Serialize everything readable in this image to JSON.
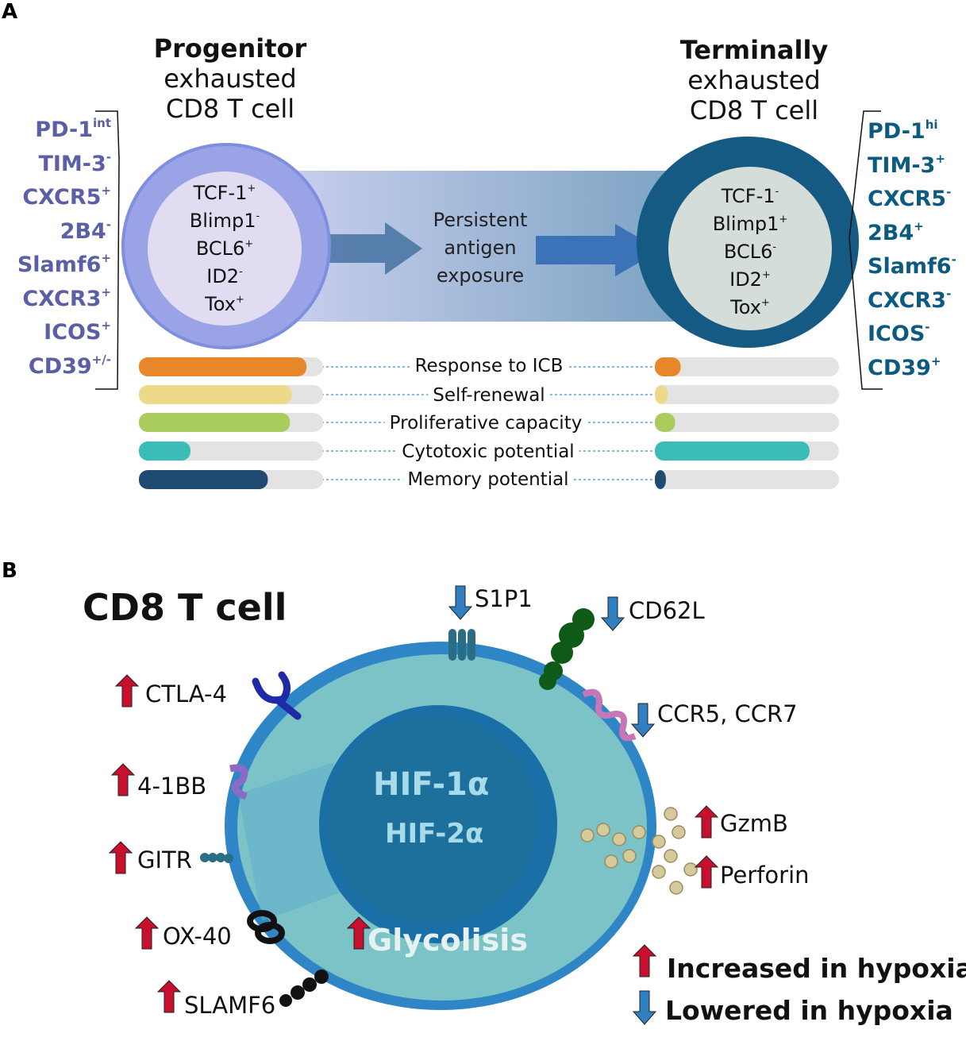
{
  "panel_a": {
    "letter": "A",
    "left_title": {
      "bold": "Progenitor",
      "line2": "exhausted",
      "line3": "CD8 T cell"
    },
    "right_title": {
      "bold": "Terminally",
      "line2": "exhausted",
      "line3": "CD8 T cell"
    },
    "left_markers": [
      {
        "name": "PD-1",
        "sup": "int"
      },
      {
        "name": "TIM-3",
        "sup": "-"
      },
      {
        "name": "CXCR5",
        "sup": "+"
      },
      {
        "name": "2B4",
        "sup": "-"
      },
      {
        "name": "Slamf6",
        "sup": "+"
      },
      {
        "name": "CXCR3",
        "sup": "+"
      },
      {
        "name": "ICOS",
        "sup": "+"
      },
      {
        "name": "CD39",
        "sup": "+/-"
      }
    ],
    "right_markers": [
      {
        "name": "PD-1",
        "sup": "hi"
      },
      {
        "name": "TIM-3",
        "sup": "+"
      },
      {
        "name": "CXCR5",
        "sup": "-"
      },
      {
        "name": "2B4",
        "sup": "+"
      },
      {
        "name": "Slamf6",
        "sup": "-"
      },
      {
        "name": "CXCR3",
        "sup": "-"
      },
      {
        "name": "ICOS",
        "sup": "-"
      },
      {
        "name": "CD39",
        "sup": "+"
      }
    ],
    "left_inner": [
      {
        "name": "TCF-1",
        "sup": "+"
      },
      {
        "name": "Blimp1",
        "sup": "-"
      },
      {
        "name": "BCL6",
        "sup": "+"
      },
      {
        "name": "ID2",
        "sup": "-"
      },
      {
        "name": "Tox",
        "sup": "+"
      }
    ],
    "right_inner": [
      {
        "name": "TCF-1",
        "sup": "-"
      },
      {
        "name": "Blimp1",
        "sup": "+"
      },
      {
        "name": "BCL6",
        "sup": "-"
      },
      {
        "name": "ID2",
        "sup": "+"
      },
      {
        "name": "Tox",
        "sup": "+"
      }
    ],
    "transition": {
      "line1": "Persistent",
      "line2": "antigen",
      "line3": "exposure"
    },
    "bars": [
      {
        "label": "Response to ICB",
        "color": "#e8862a",
        "progenitor": 0.91,
        "terminal": 0.14
      },
      {
        "label": "Self-renewal",
        "color": "#ecd98a",
        "progenitor": 0.83,
        "terminal": 0.07
      },
      {
        "label": "Proliferative capacity",
        "color": "#a9cc5c",
        "progenitor": 0.82,
        "terminal": 0.11
      },
      {
        "label": "Cytotoxic potential",
        "color": "#3bbcb8",
        "progenitor": 0.28,
        "terminal": 0.84
      },
      {
        "label": "Memory potential",
        "color": "#1f4a72",
        "progenitor": 0.7,
        "terminal": 0.06
      }
    ],
    "colors": {
      "progenitor": "#8f98e0",
      "terminal": "#145a82",
      "left_markers": "#5a5fa6",
      "right_markers": "#0d5a80"
    }
  },
  "panel_b": {
    "letter": "B",
    "title": "CD8 T cell",
    "nucleus": {
      "line1": "HIF-1α",
      "line2": "HIF-2α"
    },
    "glycolysis": "Glycolisis",
    "labels": {
      "s1p1": "S1P1",
      "cd62l": "CD62L",
      "ccr": "CCR5, CCR7",
      "ctla4": "CTLA-4",
      "4_1bb": "4-1BB",
      "gitr": "GITR",
      "ox40": "OX-40",
      "slamf6": "SLAMF6",
      "gzmb": "GzmB",
      "perforin": "Perforin"
    },
    "legend": {
      "up": "Increased in hypoxia",
      "down": "Lowered in hypoxia"
    },
    "colors": {
      "up": "#c8102e",
      "down": "#2f7fc1",
      "cell": "#7bc3c6",
      "membrane": "#2f86c7",
      "nucleus": "#1d6f9c"
    }
  }
}
